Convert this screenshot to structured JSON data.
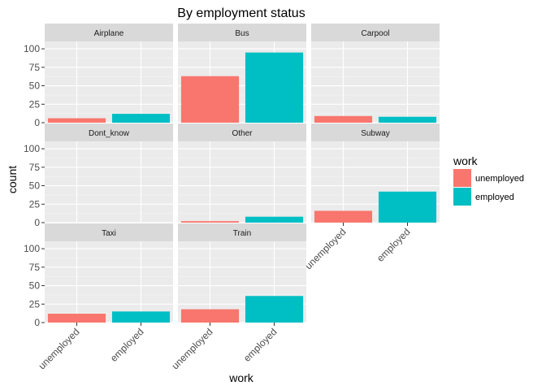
{
  "chart_data": {
    "type": "bar",
    "title": "By employment status",
    "xlabel": "work",
    "ylabel": "count",
    "categories": [
      "unemployed",
      "employed"
    ],
    "ylim": [
      0,
      110
    ],
    "yticks": [
      0,
      25,
      50,
      75,
      100
    ],
    "grid": true,
    "facet_layout": "3 columns x 3 rows, free x labels only on bottom panels",
    "legend": {
      "title": "work",
      "position": "right",
      "entries": [
        {
          "label": "unemployed",
          "color": "#F8766D"
        },
        {
          "label": "employed",
          "color": "#00BFC4"
        }
      ]
    },
    "facets": [
      {
        "name": "Airplane",
        "values": [
          6,
          12
        ]
      },
      {
        "name": "Bus",
        "values": [
          63,
          95
        ]
      },
      {
        "name": "Carpool",
        "values": [
          9,
          8
        ]
      },
      {
        "name": "Dont_know",
        "values": [
          0,
          0
        ]
      },
      {
        "name": "Other",
        "values": [
          2,
          8
        ]
      },
      {
        "name": "Subway",
        "values": [
          16,
          42
        ]
      },
      {
        "name": "Taxi",
        "values": [
          12,
          15
        ]
      },
      {
        "name": "Train",
        "values": [
          18,
          36
        ]
      }
    ]
  }
}
